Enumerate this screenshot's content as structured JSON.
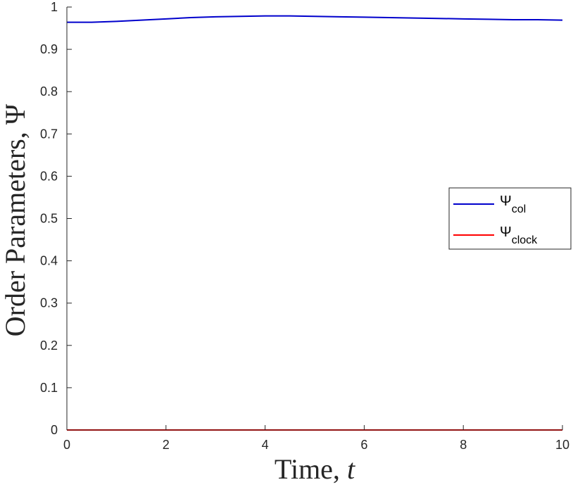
{
  "chart_data": {
    "type": "line",
    "xlabel": "Time, t",
    "ylabel": "Order Parameters, Ψ",
    "xlim": [
      0,
      10
    ],
    "ylim": [
      0,
      1
    ],
    "xticks": [
      "0",
      "2",
      "4",
      "6",
      "8",
      "10"
    ],
    "yticks": [
      "0",
      "0.1",
      "0.2",
      "0.3",
      "0.4",
      "0.5",
      "0.6",
      "0.7",
      "0.8",
      "0.9",
      "1"
    ],
    "grid": false,
    "legend_position": "right",
    "series": [
      {
        "name": "Ψcol",
        "legend_symbol": "Ψ",
        "legend_sub": "col",
        "color": "#0000cc",
        "x": [
          0,
          0.5,
          1,
          1.5,
          2,
          2.5,
          3,
          3.5,
          4,
          4.5,
          5,
          5.5,
          6,
          6.5,
          7,
          7.5,
          8,
          8.5,
          9,
          9.5,
          10
        ],
        "y": [
          0.964,
          0.964,
          0.966,
          0.969,
          0.972,
          0.975,
          0.977,
          0.978,
          0.979,
          0.979,
          0.978,
          0.977,
          0.976,
          0.975,
          0.974,
          0.973,
          0.972,
          0.971,
          0.97,
          0.97,
          0.969
        ]
      },
      {
        "name": "Ψclock",
        "legend_symbol": "Ψ",
        "legend_sub": "clock",
        "color": "#ff0000",
        "x": [
          0,
          10
        ],
        "y": [
          0,
          0
        ]
      }
    ]
  }
}
